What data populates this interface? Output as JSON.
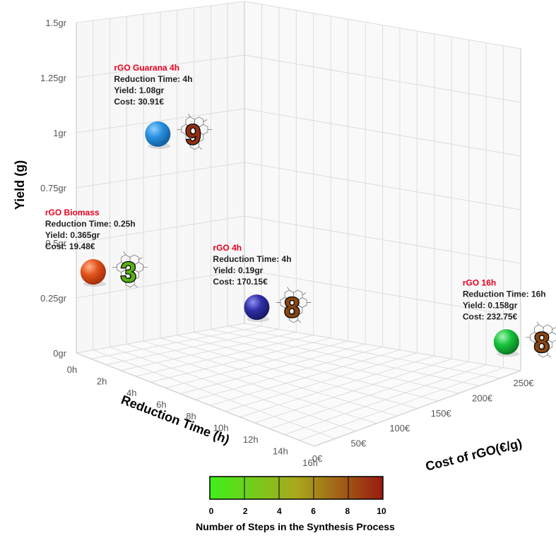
{
  "chart_data": {
    "type": "scatter3d",
    "y_axis": {
      "title": "Yield (g)",
      "range": [
        0,
        1.5
      ],
      "ticks": [
        {
          "value": 0,
          "label": "0gr"
        },
        {
          "value": 0.25,
          "label": "0.25gr"
        },
        {
          "value": 0.5,
          "label": "0.5gr"
        },
        {
          "value": 0.75,
          "label": "0.75gr"
        },
        {
          "value": 1,
          "label": "1gr"
        },
        {
          "value": 1.25,
          "label": "1.25gr"
        },
        {
          "value": 1.5,
          "label": "1.5gr"
        }
      ]
    },
    "x_axis": {
      "title": "Reduction Time (h)",
      "range": [
        0,
        16
      ],
      "ticks": [
        {
          "value": 0,
          "label": "0h"
        },
        {
          "value": 2,
          "label": "2h"
        },
        {
          "value": 4,
          "label": "4h"
        },
        {
          "value": 6,
          "label": "6h"
        },
        {
          "value": 8,
          "label": "8h"
        },
        {
          "value": 10,
          "label": "10h"
        },
        {
          "value": 12,
          "label": "12h"
        },
        {
          "value": 14,
          "label": "14h"
        },
        {
          "value": 16,
          "label": "16h"
        }
      ]
    },
    "z_axis": {
      "title": "Cost of rGO(€/g)",
      "range": [
        0,
        250
      ],
      "ticks": [
        {
          "value": 0,
          "label": "0€"
        },
        {
          "value": 50,
          "label": "50€"
        },
        {
          "value": 100,
          "label": "100€"
        },
        {
          "value": 150,
          "label": "150€"
        },
        {
          "value": 200,
          "label": "200€"
        },
        {
          "value": 250,
          "label": "250€"
        }
      ]
    },
    "points": [
      {
        "name": "rGO Guarana 4h",
        "reduction_time": 4,
        "yield": 1.08,
        "cost": 30.91,
        "steps": 9,
        "lines": [
          "Reduction Time: 4h",
          "Yield: 1.08gr",
          "Cost: 30.91€"
        ],
        "color": "#2a8fde"
      },
      {
        "name": "rGO Biomass",
        "reduction_time": 0.25,
        "yield": 0.365,
        "cost": 19.48,
        "steps": 3,
        "lines": [
          "Reduction Time: 0.25h",
          "Yield: 0.365gr",
          "Cost: 19.48€"
        ],
        "color": "#e2531c"
      },
      {
        "name": "rGO 4h",
        "reduction_time": 4,
        "yield": 0.19,
        "cost": 170.15,
        "steps": 8,
        "lines": [
          "Reduction Time: 4h",
          "Yield: 0.19gr",
          "Cost: 170.15€"
        ],
        "color": "#2f2fa8"
      },
      {
        "name": "rGO 16h",
        "reduction_time": 16,
        "yield": 0.158,
        "cost": 232.75,
        "steps": 8,
        "lines": [
          "Reduction Time: 16h",
          "Yield: 0.158gr",
          "Cost: 232.75€"
        ],
        "color": "#17c23a"
      }
    ],
    "colorbar": {
      "title": "Number of Steps in the Synthesis Process",
      "range": [
        0,
        10
      ],
      "ticks": [
        "0",
        "2",
        "4",
        "6",
        "8",
        "10"
      ],
      "colors": [
        "#3ef01a",
        "#9a1a10"
      ]
    }
  }
}
